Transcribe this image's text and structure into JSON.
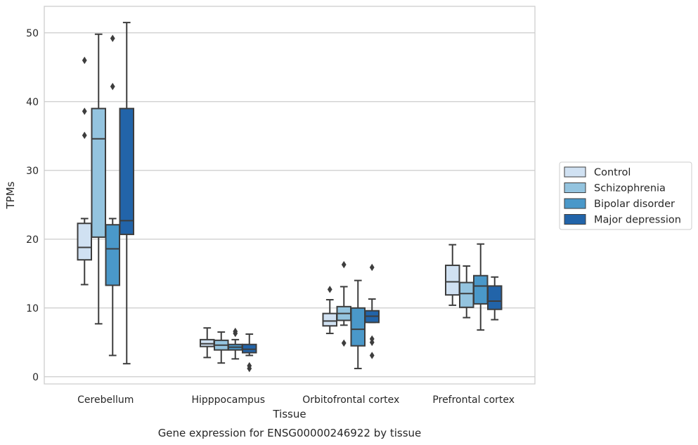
{
  "caption": "Gene expression for ENSG00000246922 by tissue",
  "chart_data": {
    "type": "box",
    "xlabel": "Tissue",
    "ylabel": "TPMs",
    "ylim": [
      -1,
      54
    ],
    "yticks": [
      0,
      10,
      20,
      30,
      40,
      50
    ],
    "grid": "horizontal",
    "legend_placement": "right-outside",
    "categories": [
      "Cerebellum",
      "Hipppocampus",
      "Orbitofrontal cortex",
      "Prefrontal cortex"
    ],
    "series": [
      {
        "name": "Control",
        "color": "#d0e1f2",
        "boxes": [
          {
            "whisker_low": 13.4,
            "q1": 17.0,
            "median": 18.8,
            "q3": 22.3,
            "whisker_high": 23.0,
            "outliers": [
              35.1,
              38.6,
              46.0
            ]
          },
          {
            "whisker_low": 2.8,
            "q1": 4.4,
            "median": 4.8,
            "q3": 5.4,
            "whisker_high": 7.1,
            "outliers": []
          },
          {
            "whisker_low": 6.3,
            "q1": 7.4,
            "median": 8.1,
            "q3": 9.2,
            "whisker_high": 11.2,
            "outliers": [
              12.7
            ]
          },
          {
            "whisker_low": 10.4,
            "q1": 11.9,
            "median": 13.8,
            "q3": 16.2,
            "whisker_high": 19.2,
            "outliers": []
          }
        ]
      },
      {
        "name": "Schizophrenia",
        "color": "#94c4df",
        "boxes": [
          {
            "whisker_low": 7.7,
            "q1": 20.3,
            "median": 34.6,
            "q3": 39.0,
            "whisker_high": 49.8,
            "outliers": []
          },
          {
            "whisker_low": 2.0,
            "q1": 3.9,
            "median": 4.6,
            "q3": 5.3,
            "whisker_high": 6.5,
            "outliers": []
          },
          {
            "whisker_low": 7.5,
            "q1": 8.2,
            "median": 9.2,
            "q3": 10.2,
            "whisker_high": 13.1,
            "outliers": [
              16.3,
              4.9
            ]
          },
          {
            "whisker_low": 8.6,
            "q1": 10.1,
            "median": 12.1,
            "q3": 13.7,
            "whisker_high": 16.1,
            "outliers": []
          }
        ]
      },
      {
        "name": "Bipolar disorder",
        "color": "#4a98c9",
        "boxes": [
          {
            "whisker_low": 3.1,
            "q1": 13.3,
            "median": 18.6,
            "q3": 22.1,
            "whisker_high": 23.0,
            "outliers": [
              42.2,
              49.2
            ]
          },
          {
            "whisker_low": 2.6,
            "q1": 3.9,
            "median": 4.3,
            "q3": 4.7,
            "whisker_high": 5.4,
            "outliers": [
              6.3,
              6.6
            ]
          },
          {
            "whisker_low": 1.2,
            "q1": 4.5,
            "median": 6.9,
            "q3": 10.0,
            "whisker_high": 14.0,
            "outliers": []
          },
          {
            "whisker_low": 6.8,
            "q1": 10.6,
            "median": 13.2,
            "q3": 14.7,
            "whisker_high": 19.3,
            "outliers": []
          }
        ]
      },
      {
        "name": "Major depression",
        "color": "#2264a9",
        "boxes": [
          {
            "whisker_low": 1.9,
            "q1": 20.7,
            "median": 22.7,
            "q3": 39.0,
            "whisker_high": 51.5,
            "outliers": []
          },
          {
            "whisker_low": 3.1,
            "q1": 3.5,
            "median": 4.0,
            "q3": 4.7,
            "whisker_high": 6.2,
            "outliers": [
              1.2,
              1.6
            ]
          },
          {
            "whisker_low": 7.9,
            "q1": 7.9,
            "median": 8.8,
            "q3": 9.6,
            "whisker_high": 11.3,
            "outliers": [
              15.9,
              5.5,
              5.0,
              3.1
            ]
          },
          {
            "whisker_low": 8.3,
            "q1": 9.8,
            "median": 11.0,
            "q3": 13.2,
            "whisker_high": 14.5,
            "outliers": []
          }
        ]
      }
    ]
  }
}
